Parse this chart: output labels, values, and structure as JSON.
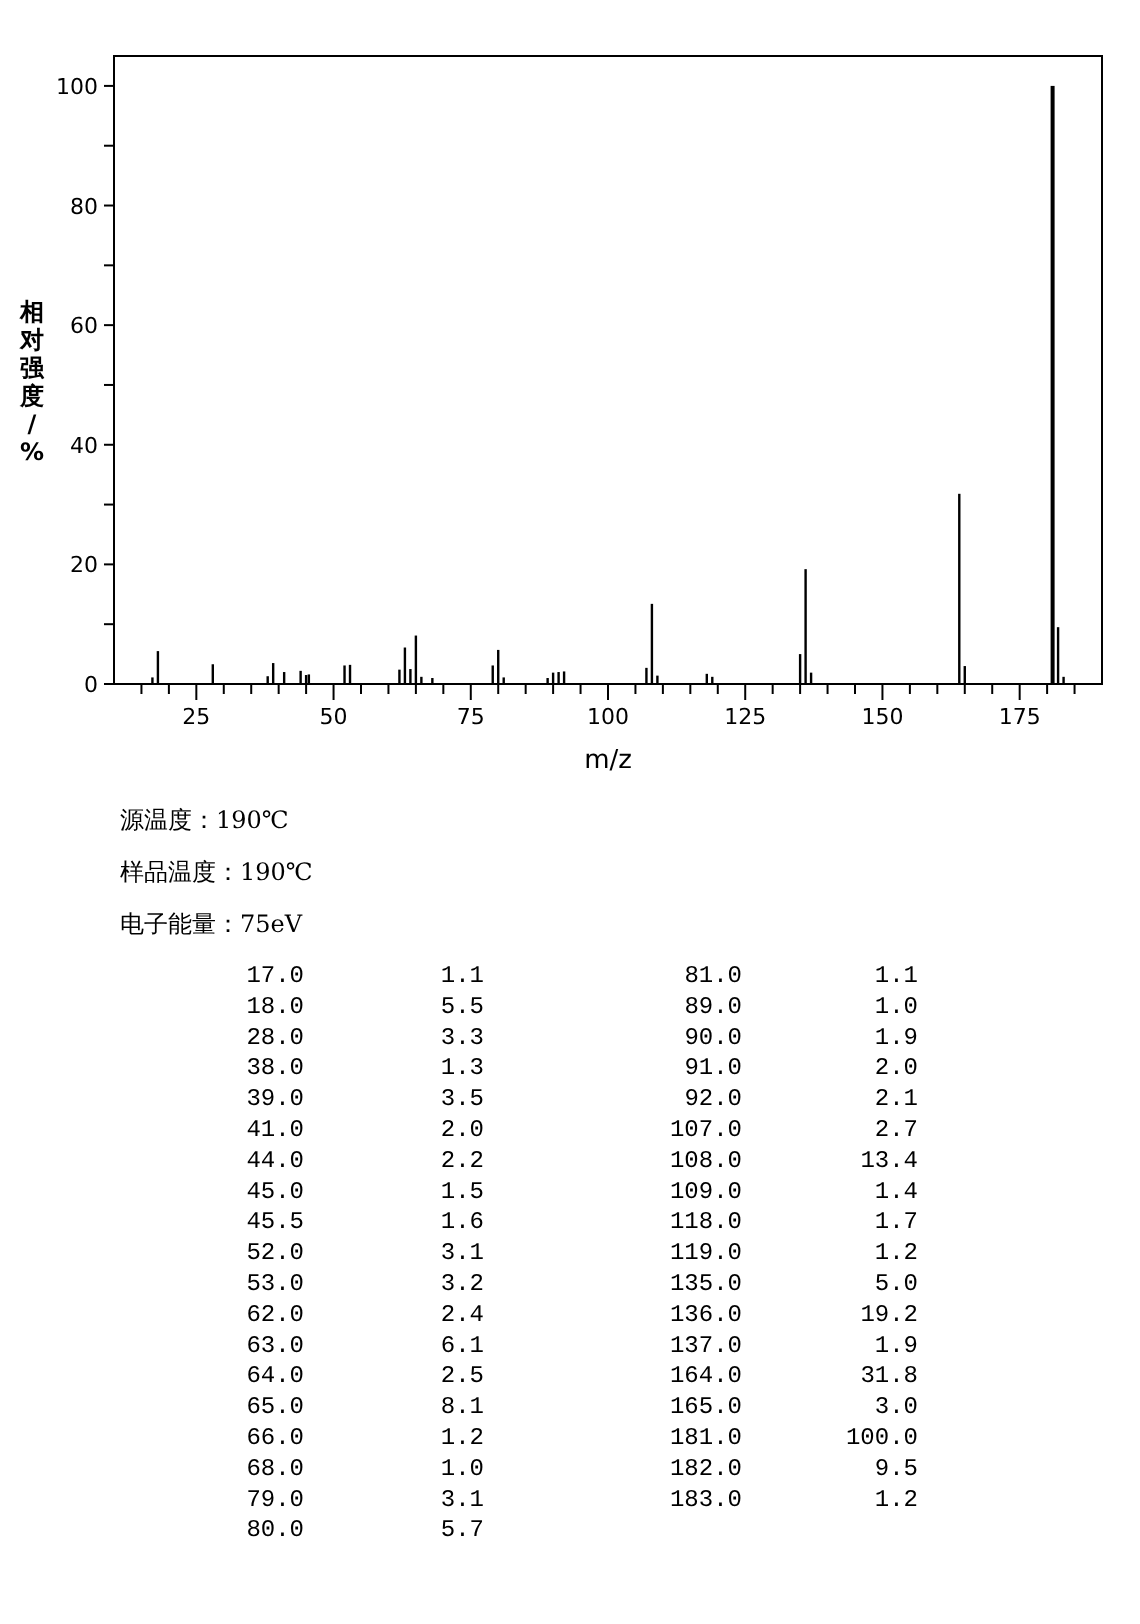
{
  "chart_data": {
    "type": "bar",
    "xlabel": "m/z",
    "ylabel": "相对强度/%",
    "x": [
      17.0,
      18.0,
      28.0,
      38.0,
      39.0,
      41.0,
      44.0,
      45.0,
      45.5,
      52.0,
      53.0,
      62.0,
      63.0,
      64.0,
      65.0,
      66.0,
      68.0,
      79.0,
      80.0,
      81.0,
      89.0,
      90.0,
      91.0,
      92.0,
      107.0,
      108.0,
      109.0,
      118.0,
      119.0,
      135.0,
      136.0,
      137.0,
      164.0,
      165.0,
      181.0,
      182.0,
      183.0
    ],
    "values": [
      1.1,
      5.5,
      3.3,
      1.3,
      3.5,
      2.0,
      2.2,
      1.5,
      1.6,
      3.1,
      3.2,
      2.4,
      6.1,
      2.5,
      8.1,
      1.2,
      1.0,
      3.1,
      5.7,
      1.1,
      1.0,
      1.9,
      2.0,
      2.1,
      2.7,
      13.4,
      1.4,
      1.7,
      1.2,
      5.0,
      19.2,
      1.9,
      31.8,
      3.0,
      100.0,
      9.5,
      1.2
    ],
    "color": "#000000",
    "xlim": [
      10,
      190
    ],
    "xticks": [
      {
        "value": 15,
        "label": null
      },
      {
        "value": 20,
        "label": null
      },
      25,
      {
        "value": 30,
        "label": null
      },
      {
        "value": 35,
        "label": null
      },
      {
        "value": 40,
        "label": null
      },
      {
        "value": 45,
        "label": null
      },
      50,
      {
        "value": 55,
        "label": null
      },
      {
        "value": 60,
        "label": null
      },
      {
        "value": 65,
        "label": null
      },
      {
        "value": 70,
        "label": null
      },
      75,
      {
        "value": 80,
        "label": null
      },
      {
        "value": 85,
        "label": null
      },
      {
        "value": 90,
        "label": null
      },
      {
        "value": 95,
        "label": null
      },
      100,
      {
        "value": 105,
        "label": null
      },
      {
        "value": 110,
        "label": null
      },
      {
        "value": 115,
        "label": null
      },
      {
        "value": 120,
        "label": null
      },
      125,
      {
        "value": 130,
        "label": null
      },
      {
        "value": 135,
        "label": null
      },
      {
        "value": 140,
        "label": null
      },
      {
        "value": 145,
        "label": null
      },
      150,
      {
        "value": 155,
        "label": null
      },
      {
        "value": 160,
        "label": null
      },
      {
        "value": 165,
        "label": null
      },
      {
        "value": 170,
        "label": null
      },
      175,
      {
        "value": 180,
        "label": null
      },
      {
        "value": 185,
        "label": null
      }
    ],
    "ylim": [
      0,
      105
    ],
    "yticks": [
      0,
      {
        "value": 10,
        "label": null
      },
      20,
      {
        "value": 30,
        "label": null
      },
      40,
      {
        "value": 50,
        "label": null
      },
      60,
      {
        "value": 70,
        "label": null
      },
      80,
      {
        "value": 90,
        "label": null
      },
      100
    ],
    "grid": false,
    "annotations": [
      "源温度：190℃",
      "样品温度：190℃",
      "电子能量：75eV",
      "17.0",
      "1.1",
      "18.0",
      "5.5",
      "28.0",
      "3.3",
      "38.0",
      "1.3",
      "39.0",
      "3.5",
      "41.0",
      "2.0",
      "44.0",
      "2.2",
      "45.0",
      "1.5",
      "45.5",
      "1.6",
      "52.0",
      "3.1",
      "53.0",
      "3.2",
      "62.0",
      "2.4",
      "63.0",
      "6.1",
      "64.0",
      "2.5",
      "65.0",
      "8.1",
      "66.0",
      "1.2",
      "68.0",
      "1.0",
      "79.0",
      "3.1",
      "80.0",
      "5.7",
      "81.0",
      "1.1",
      "89.0",
      "1.0",
      "90.0",
      "1.9",
      "91.0",
      "2.0",
      "92.0",
      "2.1",
      "107.0",
      "2.7",
      "108.0",
      "13.4",
      "109.0",
      "1.4",
      "118.0",
      "1.7",
      "119.0",
      "1.2",
      "135.0",
      "5.0",
      "136.0",
      "19.2",
      "137.0",
      "1.9",
      "164.0",
      "31.8",
      "165.0",
      "3.0",
      "181.0",
      "100.0",
      "182.0",
      "9.5",
      "183.0",
      "1.2"
    ]
  }
}
